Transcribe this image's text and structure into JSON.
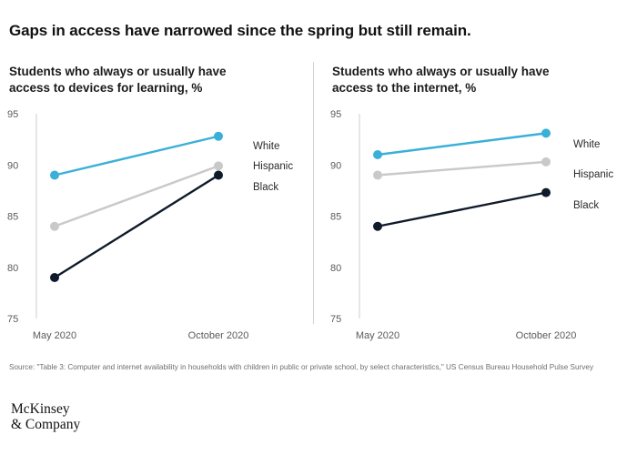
{
  "headline": "Gaps in access have narrowed since the spring but still remain.",
  "source": "Source: \"Table 3: Computer and internet availability in households with children in public or private school, by select characteristics,\" US Census Bureau Household Pulse Survey",
  "logo": {
    "line1": "McKinsey",
    "line2": "& Company"
  },
  "colors": {
    "White": "#3ab0d8",
    "Hispanic": "#c9c9c9",
    "Black": "#0f1a2a",
    "axis": "#cccccc"
  },
  "chart_data": [
    {
      "type": "line",
      "title_line1": "Students who always or usually have",
      "title_line2": "access to devices for learning, %",
      "categories": [
        "May 2020",
        "October 2020"
      ],
      "yticks": [
        75,
        80,
        85,
        90,
        95
      ],
      "ylim": [
        75,
        95
      ],
      "series": [
        {
          "name": "White",
          "values": [
            89,
            92.8
          ]
        },
        {
          "name": "Hispanic",
          "values": [
            84,
            89.9
          ]
        },
        {
          "name": "Black",
          "values": [
            79,
            89
          ]
        }
      ]
    },
    {
      "type": "line",
      "title_line1": "Students who always or usually have",
      "title_line2": "access to the internet, %",
      "categories": [
        "May 2020",
        "October 2020"
      ],
      "yticks": [
        75,
        80,
        85,
        90,
        95
      ],
      "ylim": [
        75,
        95
      ],
      "series": [
        {
          "name": "White",
          "values": [
            91,
            93.1
          ]
        },
        {
          "name": "Hispanic",
          "values": [
            89,
            90.3
          ]
        },
        {
          "name": "Black",
          "values": [
            84,
            87.3
          ]
        }
      ]
    }
  ]
}
